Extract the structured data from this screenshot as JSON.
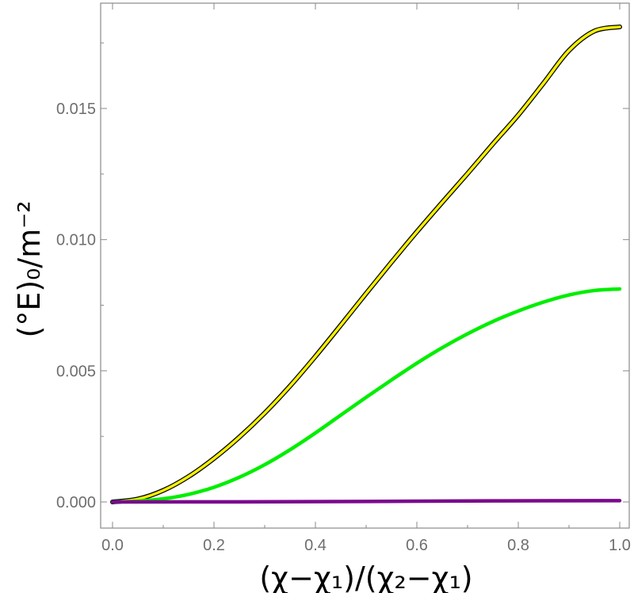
{
  "chart_data": {
    "type": "line",
    "xlabel": "(χ−χ₁)/(χ₂−χ₁)",
    "ylabel": "(°E)₀/m⁻²",
    "xlim": [
      0,
      1
    ],
    "ylim": [
      -0.001,
      0.0182
    ],
    "xticks": [
      {
        "v": 0.0,
        "label": "0.0"
      },
      {
        "v": 0.2,
        "label": "0.2"
      },
      {
        "v": 0.4,
        "label": "0.4"
      },
      {
        "v": 0.6,
        "label": "0.6"
      },
      {
        "v": 0.8,
        "label": "0.8"
      },
      {
        "v": 1.0,
        "label": "1.0"
      }
    ],
    "yticks": [
      {
        "v": 0.0,
        "label": "0.000"
      },
      {
        "v": 0.005,
        "label": "0.005"
      },
      {
        "v": 0.01,
        "label": "0.010"
      },
      {
        "v": 0.015,
        "label": "0.015"
      }
    ],
    "grid": false,
    "frame": "box",
    "series": [
      {
        "color": "#f5f000",
        "outline": "#000000",
        "x": [
          0.0,
          0.05,
          0.1,
          0.15,
          0.2,
          0.25,
          0.3,
          0.35,
          0.4,
          0.45,
          0.5,
          0.55,
          0.6,
          0.65,
          0.7,
          0.75,
          0.8,
          0.85,
          0.9,
          0.95,
          1.0
        ],
        "y": [
          0.0,
          0.00011,
          0.00044,
          0.00097,
          0.00166,
          0.00247,
          0.00339,
          0.00442,
          0.00555,
          0.00674,
          0.00795,
          0.00914,
          0.0103,
          0.01142,
          0.01252,
          0.01365,
          0.01475,
          0.01597,
          0.01721,
          0.01795,
          0.01811
        ]
      },
      {
        "color": "#00ee00",
        "x": [
          0.0,
          0.05,
          0.1,
          0.15,
          0.2,
          0.25,
          0.3,
          0.35,
          0.4,
          0.45,
          0.5,
          0.55,
          0.6,
          0.65,
          0.7,
          0.75,
          0.8,
          0.85,
          0.9,
          0.95,
          1.0
        ],
        "y": [
          0.0,
          3e-05,
          0.00012,
          0.00029,
          0.00056,
          0.00094,
          0.00142,
          0.00199,
          0.00263,
          0.00331,
          0.00399,
          0.00465,
          0.00529,
          0.00588,
          0.00641,
          0.00688,
          0.00728,
          0.00762,
          0.00789,
          0.00806,
          0.00812
        ]
      },
      {
        "color": "#7a0a8c",
        "x": [
          0.0,
          0.25,
          0.5,
          0.75,
          1.0
        ],
        "y": [
          0.0,
          5e-06,
          2e-05,
          4e-05,
          5e-05
        ]
      }
    ]
  }
}
